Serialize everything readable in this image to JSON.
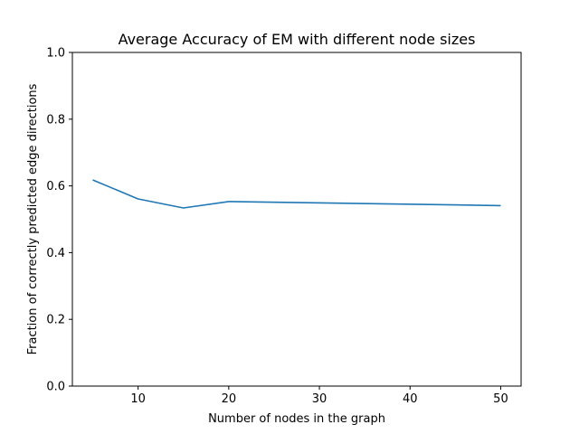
{
  "chart_data": {
    "type": "line",
    "title": "Average Accuracy of EM with different node sizes",
    "xlabel": "Number of nodes in the graph",
    "ylabel": "Fraction of correctly predicted edge directions",
    "xlim": [
      2.75,
      52.25
    ],
    "ylim": [
      0.0,
      1.0
    ],
    "xticks": [
      10,
      20,
      30,
      40,
      50
    ],
    "yticks": [
      0.0,
      0.2,
      0.4,
      0.6,
      0.8,
      1.0
    ],
    "xtick_labels": [
      "10",
      "20",
      "30",
      "40",
      "50"
    ],
    "ytick_labels": [
      "0.0",
      "0.2",
      "0.4",
      "0.6",
      "0.8",
      "1.0"
    ],
    "grid": false,
    "series": [
      {
        "color": "#1f77b4",
        "x": [
          5,
          10,
          15,
          20,
          50
        ],
        "y": [
          0.618,
          0.561,
          0.534,
          0.553,
          0.541
        ]
      }
    ]
  }
}
